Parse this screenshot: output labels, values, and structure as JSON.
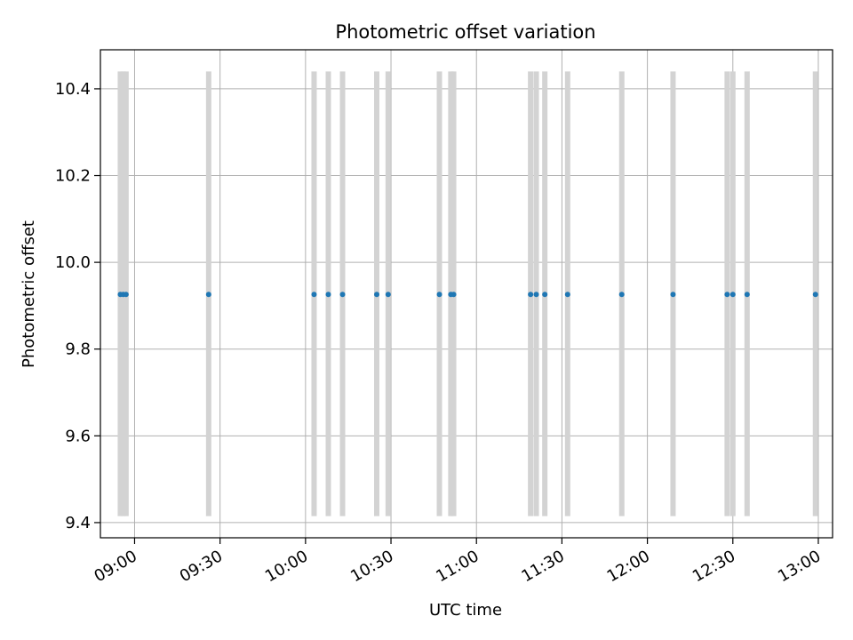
{
  "chart_data": {
    "type": "scatter",
    "title": "Photometric offset variation",
    "xlabel": "UTC time",
    "ylabel": "Photometric offset",
    "grid": true,
    "xlim": [
      "08:48",
      "13:05"
    ],
    "ylim": [
      9.365,
      10.49
    ],
    "xticks": [
      "09:00",
      "09:30",
      "10:00",
      "10:30",
      "11:00",
      "11:30",
      "12:00",
      "12:30",
      "13:00"
    ],
    "yticks": [
      "9.4",
      "9.6",
      "9.8",
      "10.0",
      "10.2",
      "10.4"
    ],
    "ytick_values": [
      9.4,
      9.6,
      9.8,
      10.0,
      10.2,
      10.4
    ],
    "marker_color": "#1f77b4",
    "band_color": "#d3d3d3",
    "series": [
      {
        "x": [
          "08:55",
          "08:56",
          "08:57",
          "09:26",
          "10:03",
          "10:08",
          "10:13",
          "10:25",
          "10:29",
          "10:47",
          "10:51",
          "10:52",
          "11:19",
          "11:21",
          "11:24",
          "11:32",
          "11:51",
          "12:09",
          "12:28",
          "12:30",
          "12:35",
          "12:59"
        ],
        "y": [
          9.926,
          9.926,
          9.926,
          9.926,
          9.926,
          9.926,
          9.926,
          9.926,
          9.926,
          9.926,
          9.926,
          9.926,
          9.926,
          9.926,
          9.926,
          9.926,
          9.926,
          9.926,
          9.926,
          9.926,
          9.926,
          9.926
        ]
      }
    ],
    "bands": {
      "y_range": [
        9.415,
        10.44
      ],
      "x": [
        "08:55",
        "08:56",
        "08:57",
        "09:26",
        "10:03",
        "10:08",
        "10:13",
        "10:25",
        "10:29",
        "10:47",
        "10:51",
        "10:52",
        "11:19",
        "11:21",
        "11:24",
        "11:32",
        "11:51",
        "12:09",
        "12:28",
        "12:30",
        "12:35",
        "12:59"
      ]
    }
  }
}
